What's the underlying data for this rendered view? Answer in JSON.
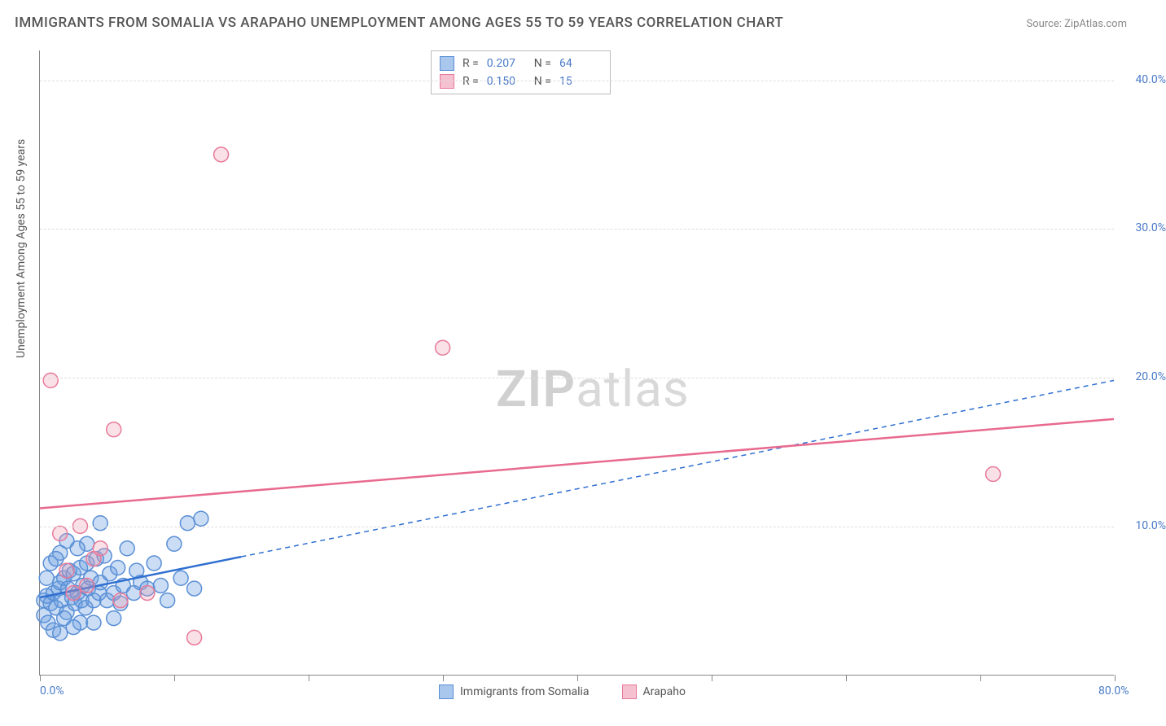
{
  "title": "IMMIGRANTS FROM SOMALIA VS ARAPAHO UNEMPLOYMENT AMONG AGES 55 TO 59 YEARS CORRELATION CHART",
  "source": "Source: ZipAtlas.com",
  "ylabel": "Unemployment Among Ages 55 to 59 years",
  "watermark_zip": "ZIP",
  "watermark_atlas": "atlas",
  "chart": {
    "type": "scatter",
    "xlim": [
      0,
      80
    ],
    "ylim": [
      0,
      42
    ],
    "x_ticks": [
      0,
      10,
      20,
      30,
      40,
      50,
      60,
      70,
      80
    ],
    "x_tick_labels_shown": {
      "0": "0.0%",
      "80": "80.0%"
    },
    "y_ticks": [
      10,
      20,
      30,
      40
    ],
    "y_tick_labels": [
      "10.0%",
      "20.0%",
      "30.0%",
      "40.0%"
    ],
    "grid_color": "#dddddd",
    "axis_color": "#888888",
    "background_color": "#ffffff",
    "marker_radius": 9,
    "marker_stroke_width": 1.5,
    "series": [
      {
        "name": "Immigrants from Somalia",
        "legend_label": "Immigrants from Somalia",
        "color_fill": "rgba(107,157,224,0.35)",
        "color_stroke": "#5a8fd6",
        "swatch_fill": "#a9c7ec",
        "swatch_stroke": "#5a8fd6",
        "R": "0.207",
        "N": "64",
        "trend": {
          "x1": 0,
          "y1": 5.2,
          "x2": 80,
          "y2": 19.8,
          "solid_until_x": 15,
          "color": "#2f6fd0",
          "width": 2.5
        },
        "points": [
          [
            0.3,
            5.0
          ],
          [
            0.5,
            5.3
          ],
          [
            0.8,
            4.8
          ],
          [
            1.0,
            5.5
          ],
          [
            1.2,
            4.5
          ],
          [
            1.4,
            5.8
          ],
          [
            1.5,
            6.2
          ],
          [
            1.6,
            5.0
          ],
          [
            1.8,
            6.5
          ],
          [
            2.0,
            4.2
          ],
          [
            2.1,
            5.8
          ],
          [
            2.2,
            7.0
          ],
          [
            2.4,
            5.2
          ],
          [
            2.5,
            6.8
          ],
          [
            2.6,
            4.8
          ],
          [
            2.8,
            5.5
          ],
          [
            3.0,
            7.2
          ],
          [
            3.1,
            5.0
          ],
          [
            3.2,
            6.0
          ],
          [
            3.4,
            4.5
          ],
          [
            3.5,
            7.5
          ],
          [
            3.6,
            5.8
          ],
          [
            3.8,
            6.5
          ],
          [
            4.0,
            5.0
          ],
          [
            4.2,
            7.8
          ],
          [
            4.4,
            5.5
          ],
          [
            4.5,
            6.2
          ],
          [
            4.8,
            8.0
          ],
          [
            5.0,
            5.0
          ],
          [
            5.2,
            6.8
          ],
          [
            5.5,
            5.5
          ],
          [
            5.8,
            7.2
          ],
          [
            6.0,
            4.8
          ],
          [
            6.2,
            6.0
          ],
          [
            6.5,
            8.5
          ],
          [
            7.0,
            5.5
          ],
          [
            7.2,
            7.0
          ],
          [
            7.5,
            6.2
          ],
          [
            8.0,
            5.8
          ],
          [
            8.5,
            7.5
          ],
          [
            9.0,
            6.0
          ],
          [
            9.5,
            5.0
          ],
          [
            10.0,
            8.8
          ],
          [
            10.5,
            6.5
          ],
          [
            11.0,
            10.2
          ],
          [
            11.5,
            5.8
          ],
          [
            12.0,
            10.5
          ],
          [
            4.5,
            10.2
          ],
          [
            3.0,
            3.5
          ],
          [
            2.5,
            3.2
          ],
          [
            1.8,
            3.8
          ],
          [
            4.0,
            3.5
          ],
          [
            5.5,
            3.8
          ],
          [
            3.5,
            8.8
          ],
          [
            2.8,
            8.5
          ],
          [
            1.5,
            8.2
          ],
          [
            2.0,
            9.0
          ],
          [
            0.8,
            7.5
          ],
          [
            1.2,
            7.8
          ],
          [
            0.5,
            6.5
          ],
          [
            0.3,
            4.0
          ],
          [
            0.6,
            3.5
          ],
          [
            1.0,
            3.0
          ],
          [
            1.5,
            2.8
          ]
        ]
      },
      {
        "name": "Arapaho",
        "legend_label": "Arapaho",
        "color_fill": "rgba(239,154,177,0.30)",
        "color_stroke": "#e77a9a",
        "swatch_fill": "#f5c0cf",
        "swatch_stroke": "#e77a9a",
        "R": "0.150",
        "N": "15",
        "trend": {
          "x1": 0,
          "y1": 11.2,
          "x2": 80,
          "y2": 17.2,
          "solid_until_x": 80,
          "color": "#e86a8f",
          "width": 2.5
        },
        "points": [
          [
            0.8,
            19.8
          ],
          [
            1.5,
            9.5
          ],
          [
            2.0,
            7.0
          ],
          [
            2.5,
            5.5
          ],
          [
            3.0,
            10.0
          ],
          [
            3.5,
            6.0
          ],
          [
            4.0,
            7.8
          ],
          [
            5.5,
            16.5
          ],
          [
            6.0,
            5.0
          ],
          [
            8.0,
            5.5
          ],
          [
            11.5,
            2.5
          ],
          [
            13.5,
            35.0
          ],
          [
            30.0,
            22.0
          ],
          [
            71.0,
            13.5
          ],
          [
            4.5,
            8.5
          ]
        ]
      }
    ],
    "statbox": {
      "R_label": "R  =",
      "N_label": "N  ="
    }
  }
}
